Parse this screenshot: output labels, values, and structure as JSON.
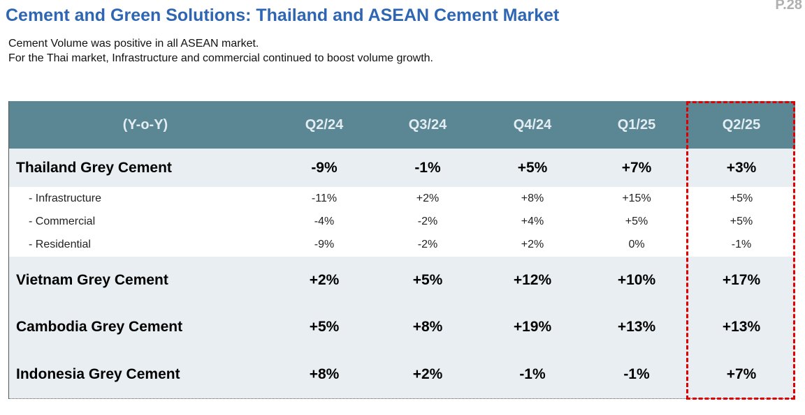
{
  "header": {
    "title": "Cement and Green Solutions: Thailand and ASEAN Cement Market",
    "page": "P.28"
  },
  "summary": [
    "Cement Volume was positive in all ASEAN market.",
    "For the Thai market, Infrastructure and commercial continued to boost volume growth."
  ],
  "table": {
    "columns": [
      "(Y-o-Y)",
      "Q2/24",
      "Q3/24",
      "Q4/24",
      "Q1/25",
      "Q2/25"
    ],
    "rows": [
      [
        "Thailand Grey Cement",
        "-9%",
        "-1%",
        "+5%",
        "+7%",
        "+3%"
      ],
      [
        "- Infrastructure",
        "-11%",
        "+2%",
        "+8%",
        "+15%",
        "+5%"
      ],
      [
        "- Commercial",
        "-4%",
        "-2%",
        "+4%",
        "+5%",
        "+5%"
      ],
      [
        "- Residential",
        "-9%",
        "-2%",
        "+2%",
        "0%",
        "-1%"
      ],
      [
        "Vietnam Grey Cement",
        "+2%",
        "+5%",
        "+12%",
        "+10%",
        "+17%"
      ],
      [
        "Cambodia Grey Cement",
        "+5%",
        "+8%",
        "+19%",
        "+13%",
        "+13%"
      ],
      [
        "Indonesia Grey Cement",
        "+8%",
        "+2%",
        "-1%",
        "-1%",
        "+7%"
      ]
    ]
  }
}
